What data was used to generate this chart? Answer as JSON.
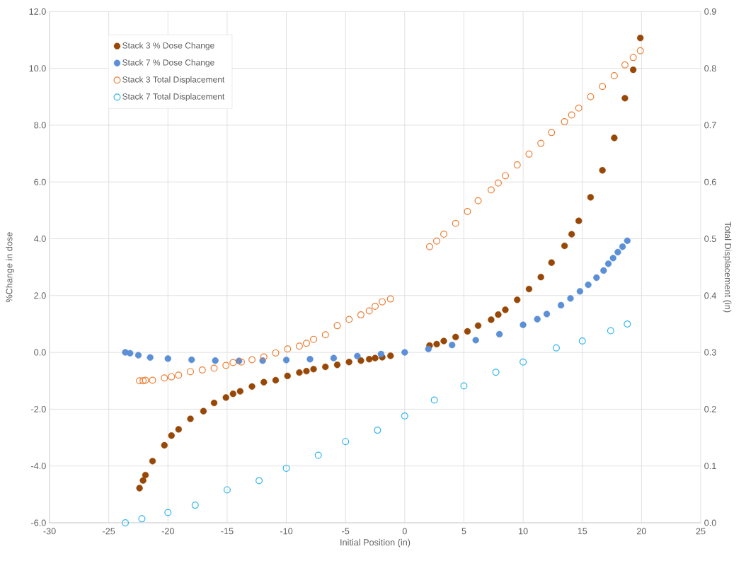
{
  "chart_data": {
    "type": "scatter",
    "xlabel": "Initial Position (in)",
    "ylabel": "%Change in dose",
    "y2label": "Total Displacement (in)",
    "xlim": [
      -30,
      25
    ],
    "xticks": [
      -30,
      -25,
      -20,
      -15,
      -10,
      -5,
      0,
      5,
      10,
      15,
      20,
      25
    ],
    "ylim": [
      -6,
      12
    ],
    "yticks": [
      {
        "value": -6,
        "label": "-6.0"
      },
      {
        "value": -4,
        "label": "-4.0"
      },
      {
        "value": -2,
        "label": "-2.0"
      },
      {
        "value": 0,
        "label": "0.0"
      },
      {
        "value": 2,
        "label": "2.0"
      },
      {
        "value": 4,
        "label": "4.0"
      },
      {
        "value": 6,
        "label": "6.0"
      },
      {
        "value": 8,
        "label": "8.0"
      },
      {
        "value": 10,
        "label": "10.0"
      },
      {
        "value": 12,
        "label": "12.0"
      }
    ],
    "y2lim": [
      0,
      0.9
    ],
    "y2ticks": [
      {
        "value": 0,
        "label": "0.0"
      },
      {
        "value": 0.1,
        "label": "0.1"
      },
      {
        "value": 0.2,
        "label": "0.2"
      },
      {
        "value": 0.3,
        "label": "0.3"
      },
      {
        "value": 0.4,
        "label": "0.4"
      },
      {
        "value": 0.5,
        "label": "0.5"
      },
      {
        "value": 0.6,
        "label": "0.6"
      },
      {
        "value": 0.7,
        "label": "0.7"
      },
      {
        "value": 0.8,
        "label": "0.8"
      },
      {
        "value": 0.9,
        "label": "0.9"
      }
    ],
    "grid": true,
    "legend": "top left",
    "marker": "circle",
    "series": [
      {
        "name": "Stack 3 % Dose Change",
        "color": "#974706",
        "x": [
          -22.4,
          -22.1,
          -21.9,
          -21.3,
          -20.3,
          -19.7,
          -19.1,
          -18.1,
          -17.0,
          -16.1,
          -15.1,
          -14.5,
          -13.9,
          -12.9,
          -11.9,
          -10.9,
          -9.9,
          -8.9,
          -8.3,
          -7.7,
          -6.7,
          -5.7,
          -4.7,
          -3.7,
          -3.0,
          -2.5,
          -1.9,
          -1.2,
          2.1,
          2.7,
          3.3,
          4.3,
          5.3,
          6.2,
          7.3,
          7.9,
          8.5,
          9.5,
          10.5,
          11.5,
          12.4,
          13.5,
          14.1,
          14.7,
          15.7,
          16.7,
          17.7,
          18.6,
          19.3,
          19.9
        ],
        "values": [
          -4.78,
          -4.51,
          -4.32,
          -3.83,
          -3.27,
          -2.93,
          -2.71,
          -2.34,
          -2.07,
          -1.78,
          -1.59,
          -1.46,
          -1.37,
          -1.2,
          -1.05,
          -0.98,
          -0.83,
          -0.71,
          -0.66,
          -0.59,
          -0.51,
          -0.44,
          -0.34,
          -0.29,
          -0.24,
          -0.2,
          -0.17,
          -0.12,
          0.24,
          0.29,
          0.4,
          0.54,
          0.74,
          0.94,
          1.15,
          1.33,
          1.5,
          1.85,
          2.23,
          2.65,
          3.16,
          3.75,
          4.16,
          4.63,
          5.46,
          6.41,
          7.55,
          8.95,
          9.95,
          11.07
        ]
      },
      {
        "name": "Stack 7 % Dose Change",
        "color": "#5b8fd6",
        "x": [
          -23.6,
          -23.2,
          -22.5,
          -21.5,
          -20,
          -18,
          -16,
          -14,
          -12,
          -10,
          -8,
          -6,
          -4,
          -2,
          0,
          2,
          4,
          6,
          8,
          10,
          11.2,
          12,
          13.2,
          14,
          14.8,
          15.5,
          16.2,
          16.8,
          17.2,
          17.6,
          18,
          18.4,
          18.8
        ],
        "values": [
          0.0,
          -0.03,
          -0.1,
          -0.18,
          -0.22,
          -0.26,
          -0.29,
          -0.3,
          -0.29,
          -0.27,
          -0.24,
          -0.2,
          -0.13,
          -0.06,
          0.0,
          0.12,
          0.26,
          0.43,
          0.64,
          0.97,
          1.17,
          1.35,
          1.66,
          1.9,
          2.15,
          2.38,
          2.63,
          2.88,
          3.12,
          3.32,
          3.53,
          3.72,
          3.93
        ]
      },
      {
        "name": "Stack 3 Total Displacement",
        "color": "#ed7d31",
        "axis": "y2",
        "x": [
          -22.4,
          -22.1,
          -21.9,
          -21.3,
          -20.3,
          -19.7,
          -19.1,
          -18.1,
          -17.1,
          -16.1,
          -15.1,
          -14.5,
          -13.8,
          -12.9,
          -11.9,
          -10.9,
          -9.9,
          -8.9,
          -8.3,
          -7.7,
          -6.7,
          -5.7,
          -4.7,
          -3.7,
          -3.0,
          -2.5,
          -1.9,
          -1.2,
          2.1,
          2.7,
          3.3,
          4.3,
          5.3,
          6.2,
          7.3,
          7.9,
          8.5,
          9.5,
          10.5,
          11.5,
          12.4,
          13.5,
          14.1,
          14.7,
          15.7,
          16.7,
          17.7,
          18.6,
          19.3,
          19.9
        ],
        "values": [
          0.25,
          0.25,
          0.251,
          0.251,
          0.255,
          0.257,
          0.26,
          0.266,
          0.269,
          0.272,
          0.277,
          0.282,
          0.283,
          0.287,
          0.292,
          0.299,
          0.306,
          0.311,
          0.316,
          0.323,
          0.331,
          0.347,
          0.358,
          0.366,
          0.373,
          0.381,
          0.389,
          0.394,
          0.486,
          0.496,
          0.508,
          0.527,
          0.548,
          0.567,
          0.586,
          0.598,
          0.611,
          0.63,
          0.649,
          0.668,
          0.687,
          0.706,
          0.718,
          0.73,
          0.75,
          0.768,
          0.787,
          0.806,
          0.819,
          0.831
        ]
      },
      {
        "name": "Stack 7 Total Displacement",
        "color": "#2eb4ee",
        "axis": "y2",
        "x": [
          -23.6,
          -22.2,
          -20,
          -17.7,
          -15,
          -12.3,
          -10,
          -7.3,
          -5,
          -2.3,
          0,
          2.5,
          5,
          7.7,
          10,
          12.8,
          15,
          17.4,
          18.8
        ],
        "values": [
          0.0,
          0.007,
          0.018,
          0.031,
          0.058,
          0.074,
          0.096,
          0.119,
          0.143,
          0.163,
          0.188,
          0.216,
          0.241,
          0.265,
          0.283,
          0.308,
          0.32,
          0.338,
          0.35
        ]
      }
    ]
  }
}
